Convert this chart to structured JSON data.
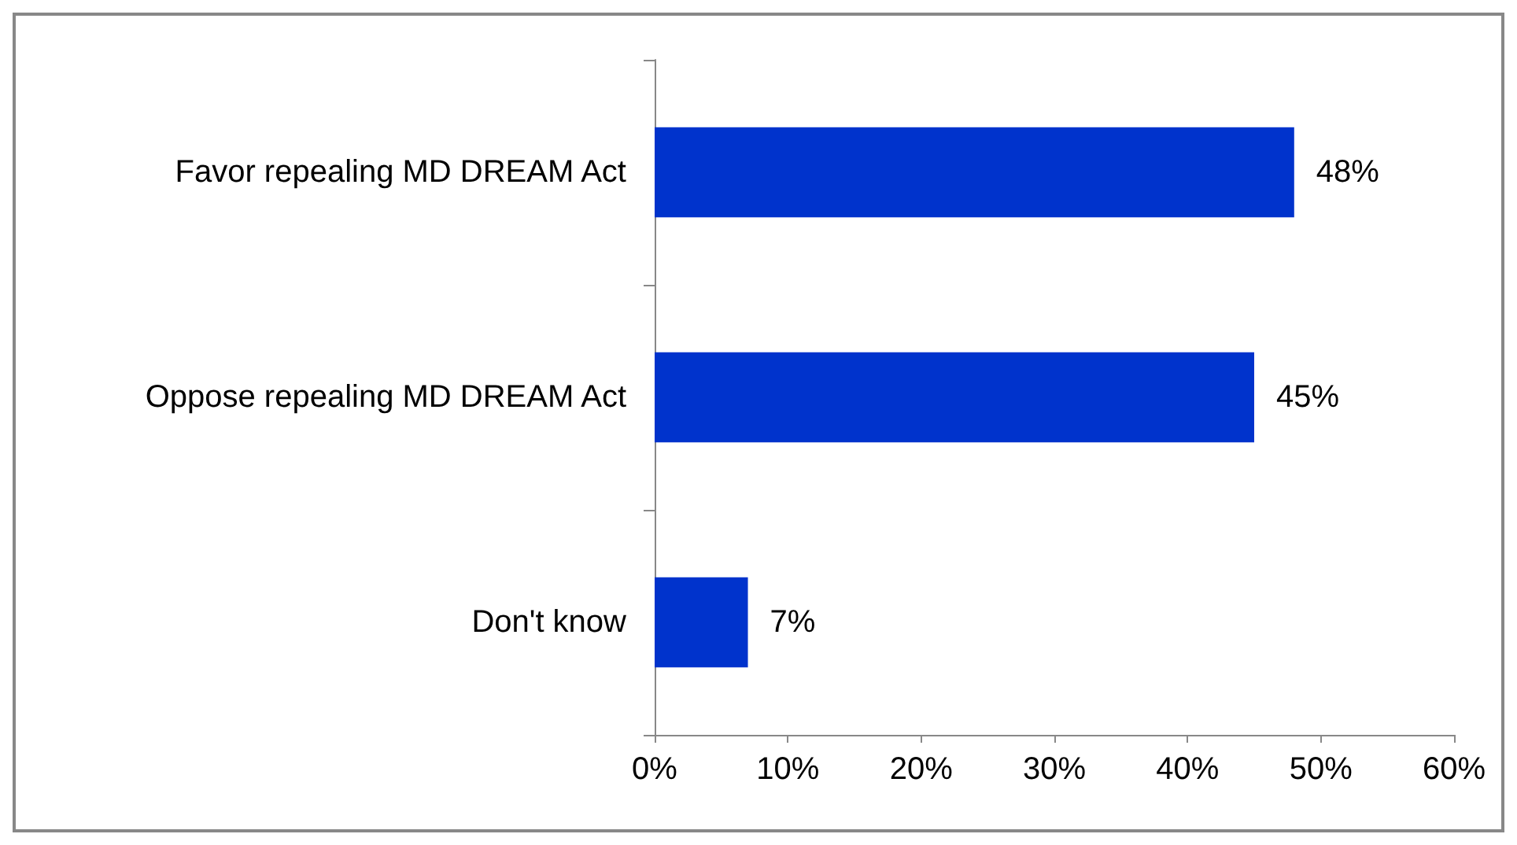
{
  "chart_data": {
    "type": "bar",
    "orientation": "horizontal",
    "categories": [
      "Favor repealing MD DREAM Act",
      "Oppose repealing MD DREAM Act",
      "Don't know"
    ],
    "values": [
      48,
      45,
      7
    ],
    "color": "#0033cc",
    "value_labels": [
      "48%",
      "45%",
      "7%"
    ],
    "xlim": [
      0,
      60
    ],
    "xticks": [
      {
        "value": 0,
        "label": "0%"
      },
      {
        "value": 10,
        "label": "10%"
      },
      {
        "value": 20,
        "label": "20%"
      },
      {
        "value": 30,
        "label": "30%"
      },
      {
        "value": 40,
        "label": "40%"
      },
      {
        "value": 50,
        "label": "50%"
      },
      {
        "value": 60,
        "label": "60%"
      }
    ],
    "grid": false
  }
}
